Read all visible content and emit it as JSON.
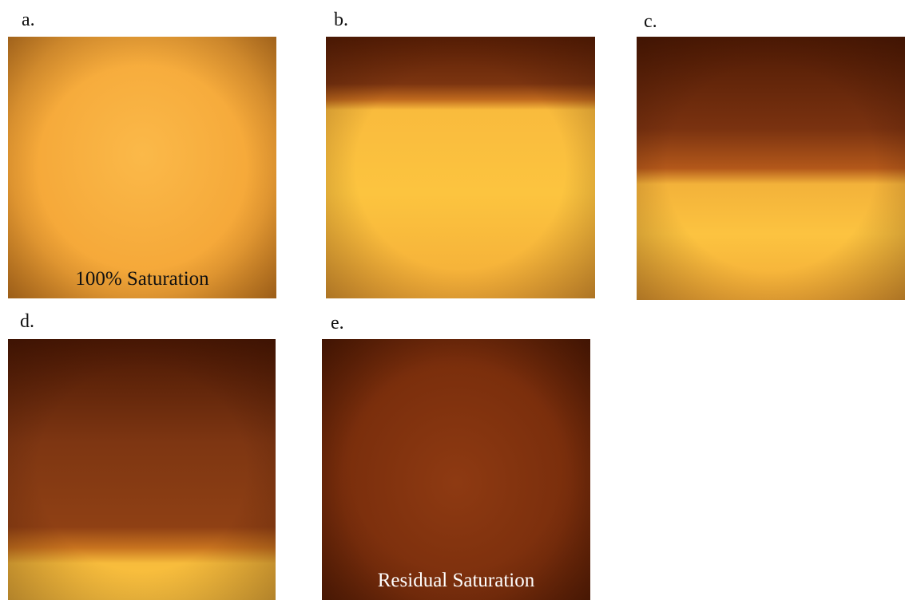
{
  "panels": [
    {
      "label": "a.",
      "caption": "100% Saturation"
    },
    {
      "label": "b."
    },
    {
      "label": "c."
    },
    {
      "label": "d."
    },
    {
      "label": "e.",
      "caption": "Residual Saturation"
    }
  ]
}
